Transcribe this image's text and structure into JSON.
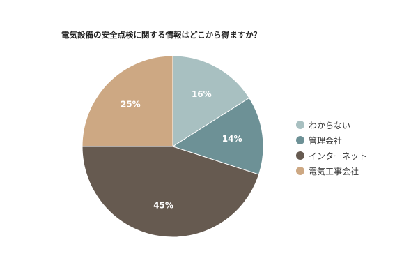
{
  "chart_data": {
    "type": "pie",
    "title": "電気設備の安全点検に関する情報はどこから得ますか？",
    "categories": [
      "わからない",
      "管理会社",
      "インターネット",
      "電気工事会社"
    ],
    "values": [
      16,
      14,
      45,
      25
    ],
    "data_labels": [
      "16%",
      "14%",
      "45%",
      "25%"
    ],
    "colors": [
      "#a8c0c1",
      "#6d9196",
      "#665a50",
      "#cda883"
    ],
    "legend_position": "right"
  }
}
